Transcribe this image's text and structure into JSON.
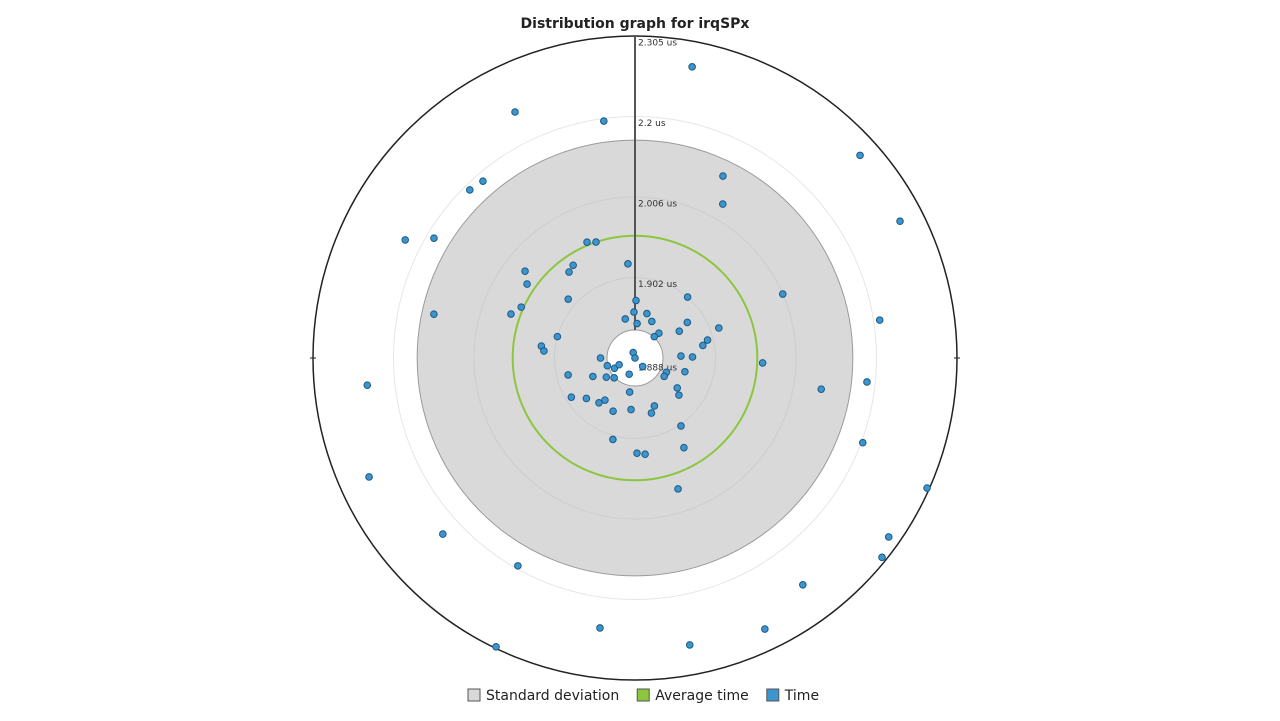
{
  "chart_data": {
    "type": "polar-scatter",
    "title": "Distribution graph for irqSPx",
    "rlim": [
      1.888,
      2.305
    ],
    "rticks": [
      {
        "value": 1.888,
        "label": "1.888 us"
      },
      {
        "value": 1.902,
        "label": "1.902 us"
      },
      {
        "value": 2.006,
        "label": "2.006 us"
      },
      {
        "value": 2.2,
        "label": "2.2 us"
      },
      {
        "value": 2.305,
        "label": "2.305 us"
      }
    ],
    "series": [
      {
        "name": "Standard deviation",
        "color": "#d9d9d9",
        "value": 0.187
      },
      {
        "name": "Average time",
        "color": "#8cc63f",
        "value": 1.956
      },
      {
        "name": "Time",
        "color": "#3d95cf",
        "angles": [
          11.1,
          334,
          352.5,
          48,
          319.3,
          315.5,
          25.8,
          29.7,
          62.7,
          297.2,
          300.8,
          337.5,
          341.4,
          355.7,
          326.3,
          322.5,
          308.3,
          304.4,
          311.4,
          294.1,
          289.5,
          282.3,
          66.6,
          81.2,
          1,
          40.8,
          358.7,
          15,
          346,
          24.7,
          55.8,
          70.3,
          3.5,
          43.9,
          58.8,
          285.4,
          42,
          76.1,
          79.5,
          277.3,
          274.4,
          87.6,
          89,
          270,
          341.6,
          225,
          254.4,
          243.4,
          199.7,
          92.2,
          264.2,
          255.8,
          246.3,
          236.3,
          226.4,
          114.4,
          122.2,
          105.4,
          125.3,
          99.5,
          95.9,
          188.9,
          238.4,
          230.2,
          218.8,
          215.5,
          202.4,
          184.4,
          158,
          163.4,
          130.2,
          145.9,
          195.2,
          110.4,
          178.8,
          174,
          151.4,
          114,
          245.9,
          161.8,
          227.5,
          125.2,
          128.9,
          209.4,
          143.5,
          187.4,
          154.4,
          169.2,
          205.7,
          138,
          247
        ],
        "values": [
          2.272,
          2.242,
          2.194,
          2.28,
          2.18,
          2.186,
          2.105,
          2.045,
          2.274,
          2.222,
          2.182,
          1.96,
          1.956,
          1.92,
          1.942,
          1.938,
          1.979,
          1.967,
          1.913,
          1.959,
          1.968,
          2.114,
          2.006,
          2.208,
          1.898,
          1.902,
          1.896,
          1.896,
          1.895,
          1.895,
          1.899,
          1.913,
          1.894,
          1.894,
          1.897,
          1.902,
          1.893,
          1.901,
          1.9,
          1.92,
          1.916,
          1.896,
          1.898,
          1.894,
          1.889,
          1.888,
          1.893,
          1.892,
          1.891,
          1.963,
          2.236,
          1.9,
          1.896,
          1.894,
          1.893,
          1.894,
          1.894,
          1.897,
          1.897,
          2.073,
          2.18,
          1.894,
          1.901,
          1.899,
          1.898,
          1.897,
          1.898,
          1.897,
          1.897,
          1.898,
          1.898,
          1.904,
          1.907,
          2.202,
          1.921,
          1.923,
          1.93,
          2.302,
          2.265,
          1.976,
          2.225,
          2.29,
          2.299,
          2.193,
          2.253,
          2.24,
          2.277,
          2.266,
          2.303,
          1.89,
          1.891
        ]
      }
    ]
  }
}
